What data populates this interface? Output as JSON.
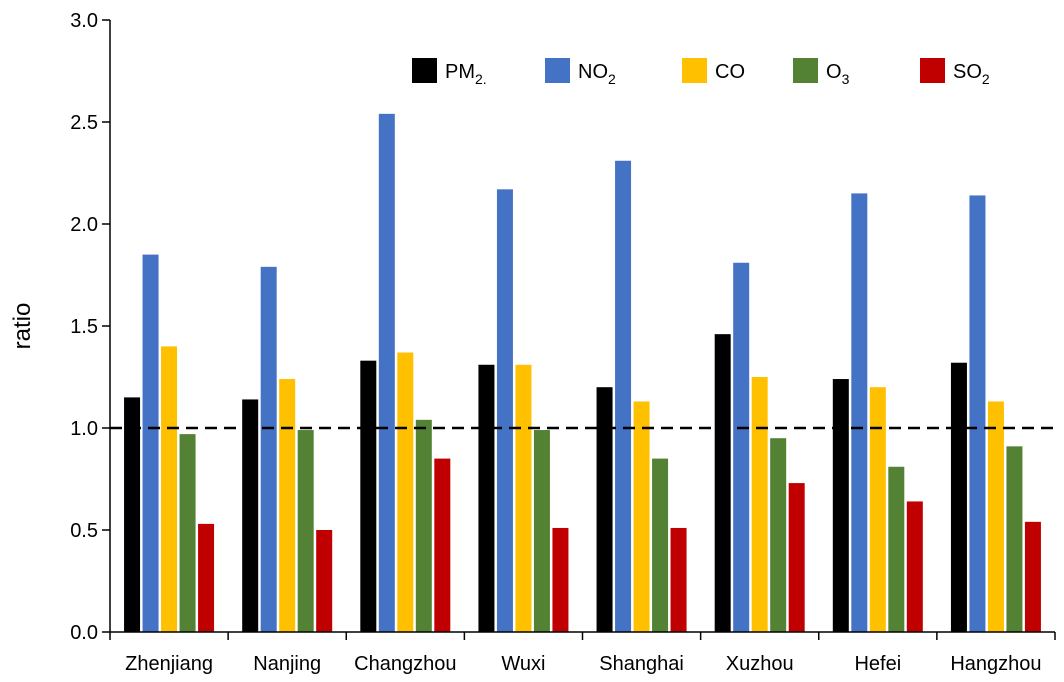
{
  "chart_data": {
    "type": "bar",
    "title": "",
    "xlabel": "",
    "ylabel": "ratio",
    "ylim": [
      0,
      3.0
    ],
    "yticks": [
      "0.0",
      "0.5",
      "1.0",
      "1.5",
      "2.0",
      "2.5",
      "3.0"
    ],
    "reference_line": {
      "y": 1.0,
      "style": "dashed"
    },
    "legend_placement": "top-right",
    "categories": [
      "Zhenjiang",
      "Nanjing",
      "Changzhou",
      "Wuxi",
      "Shanghai",
      "Xuzhou",
      "Hefei",
      "Hangzhou"
    ],
    "series": [
      {
        "name": "PM2.",
        "legend_base": "PM",
        "legend_sub": "2.",
        "color": "#000000",
        "values": [
          1.15,
          1.14,
          1.33,
          1.31,
          1.2,
          1.46,
          1.24,
          1.32
        ]
      },
      {
        "name": "NO2",
        "legend_base": "NO",
        "legend_sub": "2",
        "color": "#4472C4",
        "values": [
          1.85,
          1.79,
          2.54,
          2.17,
          2.31,
          1.81,
          2.15,
          2.14
        ]
      },
      {
        "name": "CO",
        "legend_base": "CO",
        "legend_sub": "",
        "color": "#FFC000",
        "values": [
          1.4,
          1.24,
          1.37,
          1.31,
          1.13,
          1.25,
          1.2,
          1.13
        ]
      },
      {
        "name": "O3",
        "legend_base": "O",
        "legend_sub": "3",
        "color": "#548235",
        "values": [
          0.97,
          0.99,
          1.04,
          0.99,
          0.85,
          0.95,
          0.81,
          0.91
        ]
      },
      {
        "name": "SO2",
        "legend_base": "SO",
        "legend_sub": "2",
        "color": "#C00000",
        "values": [
          0.53,
          0.5,
          0.85,
          0.51,
          0.51,
          0.73,
          0.64,
          0.54
        ]
      }
    ]
  }
}
